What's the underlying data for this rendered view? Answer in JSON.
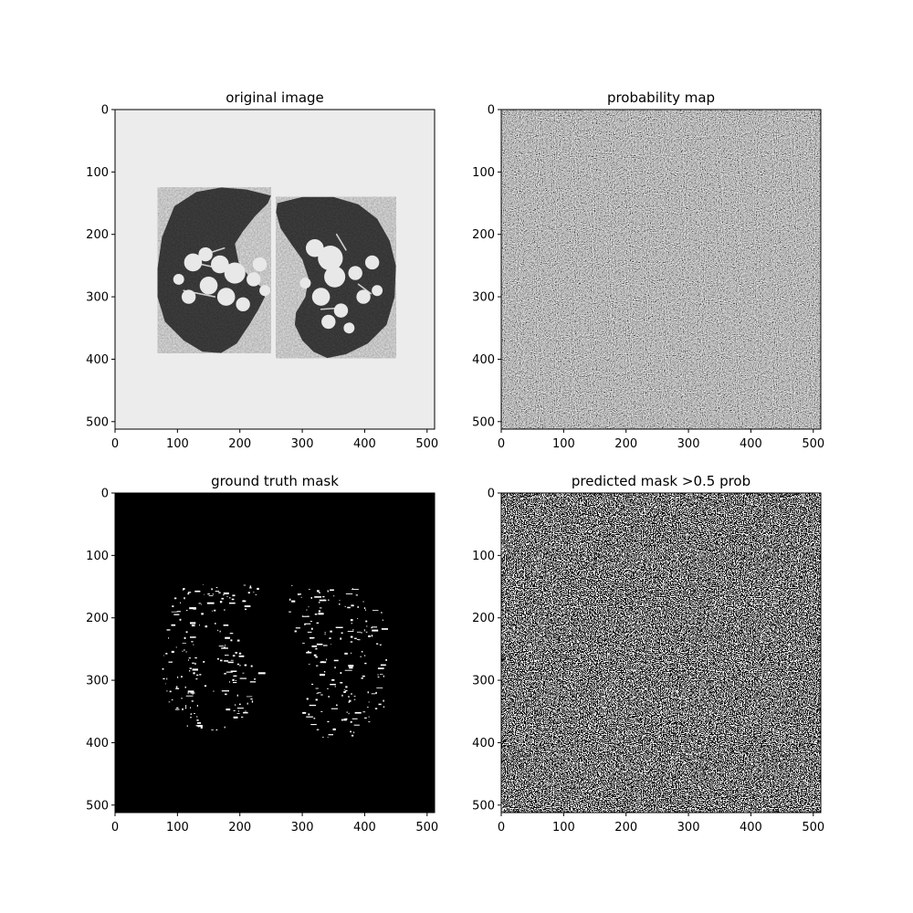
{
  "figure": {
    "background": "#ffffff",
    "panels": [
      {
        "title": "original image",
        "kind": "ct-slice",
        "background_gray": "#ececec",
        "xticks": [
          "0",
          "100",
          "200",
          "300",
          "400",
          "500"
        ],
        "yticks": [
          "0",
          "100",
          "200",
          "300",
          "400",
          "500"
        ]
      },
      {
        "title": "probability map",
        "kind": "noise-gray",
        "xticks": [
          "0",
          "100",
          "200",
          "300",
          "400",
          "500"
        ],
        "yticks": [
          "0",
          "100",
          "200",
          "300",
          "400",
          "500"
        ]
      },
      {
        "title": "ground truth mask",
        "kind": "binary-mask",
        "xticks": [
          "0",
          "100",
          "200",
          "300",
          "400",
          "500"
        ],
        "yticks": [
          "0",
          "100",
          "200",
          "300",
          "400",
          "500"
        ]
      },
      {
        "title": "predicted mask >0.5 prob",
        "kind": "noise-binary",
        "xticks": [
          "0",
          "100",
          "200",
          "300",
          "400",
          "500"
        ],
        "yticks": [
          "0",
          "100",
          "200",
          "300",
          "400",
          "500"
        ]
      }
    ]
  },
  "chart_data": [
    {
      "type": "heatmap",
      "title": "original image",
      "image_size": [
        512,
        512
      ],
      "xlim": [
        0,
        512
      ],
      "ylim": [
        512,
        0
      ],
      "xticks": [
        0,
        100,
        200,
        300,
        400,
        500
      ],
      "yticks": [
        0,
        100,
        200,
        300,
        400,
        500
      ],
      "colormap": "gray",
      "content": "CT slice with two dark lung regions on light gray background",
      "left_lung_outline": [
        [
          95,
          155
        ],
        [
          130,
          132
        ],
        [
          170,
          125
        ],
        [
          210,
          128
        ],
        [
          250,
          138
        ],
        [
          245,
          150
        ],
        [
          225,
          170
        ],
        [
          205,
          195
        ],
        [
          192,
          215
        ],
        [
          198,
          245
        ],
        [
          215,
          268
        ],
        [
          235,
          285
        ],
        [
          240,
          300
        ],
        [
          230,
          320
        ],
        [
          215,
          345
        ],
        [
          195,
          375
        ],
        [
          170,
          390
        ],
        [
          140,
          388
        ],
        [
          110,
          370
        ],
        [
          80,
          340
        ],
        [
          68,
          300
        ],
        [
          68,
          255
        ],
        [
          75,
          205
        ]
      ],
      "right_lung_outline": [
        [
          260,
          150
        ],
        [
          300,
          140
        ],
        [
          350,
          140
        ],
        [
          390,
          152
        ],
        [
          420,
          175
        ],
        [
          440,
          210
        ],
        [
          450,
          250
        ],
        [
          448,
          300
        ],
        [
          435,
          345
        ],
        [
          405,
          375
        ],
        [
          370,
          392
        ],
        [
          340,
          398
        ],
        [
          318,
          388
        ],
        [
          300,
          370
        ],
        [
          288,
          345
        ],
        [
          290,
          325
        ],
        [
          305,
          300
        ],
        [
          310,
          270
        ],
        [
          300,
          240
        ],
        [
          282,
          215
        ],
        [
          265,
          190
        ],
        [
          258,
          165
        ]
      ],
      "vessels": [
        [
          125,
          245,
          0.028
        ],
        [
          145,
          232,
          0.022
        ],
        [
          168,
          248,
          0.028
        ],
        [
          192,
          262,
          0.033
        ],
        [
          232,
          248,
          0.022
        ],
        [
          150,
          282,
          0.028
        ],
        [
          178,
          300,
          0.028
        ],
        [
          205,
          312,
          0.022
        ],
        [
          118,
          300,
          0.022
        ],
        [
          102,
          272,
          0.017
        ],
        [
          222,
          272,
          0.022
        ],
        [
          240,
          290,
          0.017
        ],
        [
          320,
          222,
          0.028
        ],
        [
          345,
          238,
          0.039
        ],
        [
          352,
          268,
          0.033
        ],
        [
          385,
          262,
          0.022
        ],
        [
          412,
          245,
          0.022
        ],
        [
          398,
          300,
          0.022
        ],
        [
          362,
          322,
          0.022
        ],
        [
          330,
          300,
          0.028
        ],
        [
          342,
          340,
          0.022
        ],
        [
          375,
          350,
          0.017
        ],
        [
          305,
          278,
          0.017
        ],
        [
          420,
          290,
          0.017
        ]
      ],
      "vessel_lines": [
        [
          [
            125,
            245
          ],
          [
            170,
            255
          ]
        ],
        [
          [
            110,
            290
          ],
          [
            160,
            300
          ]
        ],
        [
          [
            310,
            215
          ],
          [
            345,
            240
          ]
        ],
        [
          [
            355,
            200
          ],
          [
            370,
            225
          ]
        ],
        [
          [
            390,
            280
          ],
          [
            410,
            295
          ]
        ],
        [
          [
            150,
            230
          ],
          [
            175,
            222
          ]
        ],
        [
          [
            330,
            320
          ],
          [
            360,
            318
          ]
        ]
      ]
    },
    {
      "type": "heatmap",
      "title": "probability map",
      "image_size": [
        512,
        512
      ],
      "xlim": [
        0,
        512
      ],
      "ylim": [
        512,
        0
      ],
      "xticks": [
        0,
        100,
        200,
        300,
        400,
        500
      ],
      "yticks": [
        0,
        100,
        200,
        300,
        400,
        500
      ],
      "colormap": "gray",
      "value_range": [
        0,
        1
      ],
      "content": "noise-like gray probability values"
    },
    {
      "type": "heatmap",
      "title": "ground truth mask",
      "image_size": [
        512,
        512
      ],
      "xlim": [
        0,
        512
      ],
      "ylim": [
        512,
        0
      ],
      "xticks": [
        0,
        100,
        200,
        300,
        400,
        500
      ],
      "yticks": [
        0,
        100,
        200,
        300,
        400,
        500
      ],
      "colormap": "gray",
      "value_range": [
        0,
        1
      ],
      "content": "sparse white vessel segments on black inside both lungs",
      "region_extent_left": [
        75,
        235,
        145,
        380
      ],
      "region_extent_right": [
        270,
        435,
        145,
        395
      ]
    },
    {
      "type": "heatmap",
      "title": "predicted mask >0.5 prob",
      "image_size": [
        512,
        512
      ],
      "xlim": [
        0,
        512
      ],
      "ylim": [
        512,
        0
      ],
      "xticks": [
        0,
        100,
        200,
        300,
        400,
        500
      ],
      "yticks": [
        0,
        100,
        200,
        300,
        400,
        500
      ],
      "colormap": "gray",
      "threshold": 0.5,
      "content": "binary noise pattern"
    }
  ]
}
